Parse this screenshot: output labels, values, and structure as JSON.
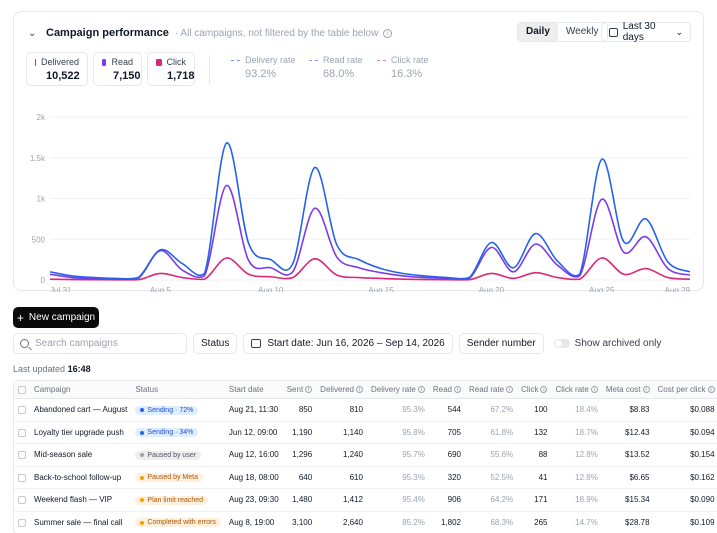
{
  "header": {
    "title": "Campaign performance",
    "subtitle": "· All campaigns, not filtered by the table below",
    "info_glyph": "i",
    "toggle": [
      "Daily",
      "Weekly"
    ],
    "range_label": "Last 30 days"
  },
  "stats": [
    {
      "label": "Delivered",
      "value": "10,522",
      "color": "#2563eb"
    },
    {
      "label": "Read",
      "value": "7,150",
      "color": "#7c3aed"
    },
    {
      "label": "Click",
      "value": "1,718",
      "color": "#db2777"
    }
  ],
  "rates": [
    {
      "label": "Delivery rate",
      "value": "93.2%",
      "color": "#60a5fa"
    },
    {
      "label": "Read rate",
      "value": "68.0%",
      "color": "#a78bfa"
    },
    {
      "label": "Click rate",
      "value": "16.3%",
      "color": "#f472b6"
    }
  ],
  "chart_data": {
    "type": "line",
    "x": [
      "Jul 31",
      "Aug 1",
      "Aug 2",
      "Aug 3",
      "Aug 4",
      "Aug 5",
      "Aug 6",
      "Aug 7",
      "Aug 8",
      "Aug 9",
      "Aug 10",
      "Aug 11",
      "Aug 12",
      "Aug 13",
      "Aug 14",
      "Aug 15",
      "Aug 16",
      "Aug 17",
      "Aug 18",
      "Aug 19",
      "Aug 20",
      "Aug 21",
      "Aug 22",
      "Aug 23",
      "Aug 24",
      "Aug 25",
      "Aug 26",
      "Aug 27",
      "Aug 28",
      "Aug 29"
    ],
    "xtick_labels": [
      "Jul 31",
      "Aug 5",
      "Aug 10",
      "Aug 15",
      "Aug 20",
      "Aug 25",
      "Aug 29"
    ],
    "ytick_labels": [
      "0",
      "500",
      "1k",
      "1.5k",
      "2k"
    ],
    "ylim": [
      0,
      2000
    ],
    "series": [
      {
        "name": "Delivered",
        "color": "#2563eb",
        "values": [
          100,
          50,
          30,
          20,
          30,
          370,
          200,
          80,
          1680,
          450,
          250,
          200,
          1380,
          430,
          250,
          140,
          80,
          50,
          30,
          30,
          460,
          150,
          570,
          230,
          70,
          1480,
          470,
          750,
          220,
          100
        ]
      },
      {
        "name": "Read",
        "color": "#7c3aed",
        "values": [
          70,
          30,
          15,
          10,
          20,
          360,
          120,
          50,
          1160,
          240,
          150,
          100,
          880,
          280,
          150,
          90,
          50,
          30,
          20,
          20,
          400,
          100,
          440,
          180,
          50,
          990,
          340,
          530,
          140,
          60
        ]
      },
      {
        "name": "Click",
        "color": "#db2777",
        "values": [
          10,
          5,
          3,
          2,
          3,
          80,
          30,
          10,
          270,
          70,
          40,
          30,
          260,
          60,
          30,
          20,
          10,
          5,
          3,
          3,
          80,
          20,
          90,
          30,
          10,
          270,
          70,
          140,
          30,
          10
        ]
      }
    ]
  },
  "new_campaign": {
    "icon": "+",
    "label": "New campaign"
  },
  "filters": {
    "search_placeholder": "Search campaigns",
    "status_label": "Status",
    "date_label": "Start date: Jun 16, 2026 – Sep 14, 2026",
    "sender_label": "Sender number",
    "archived_label": "Show archived only"
  },
  "last_updated": {
    "prefix": "Last updated",
    "time": "16:48"
  },
  "table": {
    "columns": [
      "Campaign",
      "Status",
      "Start date",
      "Sent",
      "Delivered",
      "Delivery rate",
      "Read",
      "Read rate",
      "Click",
      "Click rate",
      "Meta cost",
      "Cost per click"
    ],
    "rows": [
      {
        "name": "Abandoned cart — August",
        "status": "Sending · 72%",
        "status_kind": "blue",
        "start": "Aug 21, 11:30",
        "sent": "850",
        "delivered": "810",
        "drate": "95.3%",
        "read": "544",
        "rrate": "67.2%",
        "click": "100",
        "crate": "18.4%",
        "cost": "$8.83",
        "cpc": "$0.088"
      },
      {
        "name": "Loyalty tier upgrade push",
        "status": "Sending · 34%",
        "status_kind": "blue",
        "start": "Jun 12, 09:00",
        "sent": "1,190",
        "delivered": "1,140",
        "drate": "95.8%",
        "read": "705",
        "rrate": "61.8%",
        "click": "132",
        "crate": "18.7%",
        "cost": "$12.43",
        "cpc": "$0.094"
      },
      {
        "name": "Mid-season sale",
        "status": "Paused by user",
        "status_kind": "gray",
        "start": "Aug 12, 16:00",
        "sent": "1,296",
        "delivered": "1,240",
        "drate": "95.7%",
        "read": "690",
        "rrate": "55.6%",
        "click": "88",
        "crate": "12.8%",
        "cost": "$13.52",
        "cpc": "$0.154"
      },
      {
        "name": "Back-to-school follow-up",
        "status": "Paused by Meta",
        "status_kind": "orange",
        "start": "Aug 18, 08:00",
        "sent": "640",
        "delivered": "610",
        "drate": "95.3%",
        "read": "320",
        "rrate": "52.5%",
        "click": "41",
        "crate": "12.8%",
        "cost": "$6.65",
        "cpc": "$0.162"
      },
      {
        "name": "Weekend flash — VIP",
        "status": "Plan limit reached",
        "status_kind": "orange",
        "start": "Aug 23, 09:30",
        "sent": "1,480",
        "delivered": "1,412",
        "drate": "95.4%",
        "read": "906",
        "rrate": "64.2%",
        "click": "171",
        "crate": "18.9%",
        "cost": "$15.34",
        "cpc": "$0.090"
      },
      {
        "name": "Summer sale — final call",
        "status": "Completed with errors",
        "status_kind": "orange",
        "start": "Aug 8, 19:00",
        "sent": "3,100",
        "delivered": "2,640",
        "drate": "85.2%",
        "read": "1,802",
        "rrate": "68.3%",
        "click": "265",
        "crate": "14.7%",
        "cost": "$28.78",
        "cpc": "$0.109"
      }
    ]
  },
  "badge_colors": {
    "blue": {
      "bg": "#e0edff",
      "fg": "#1d4ed8",
      "dot": "#2563eb"
    },
    "gray": {
      "bg": "#eeeeee",
      "fg": "#4b5563",
      "dot": "#9ca3af"
    },
    "orange": {
      "bg": "#fdf0dc",
      "fg": "#b45309",
      "dot": "#f59e0b"
    }
  }
}
